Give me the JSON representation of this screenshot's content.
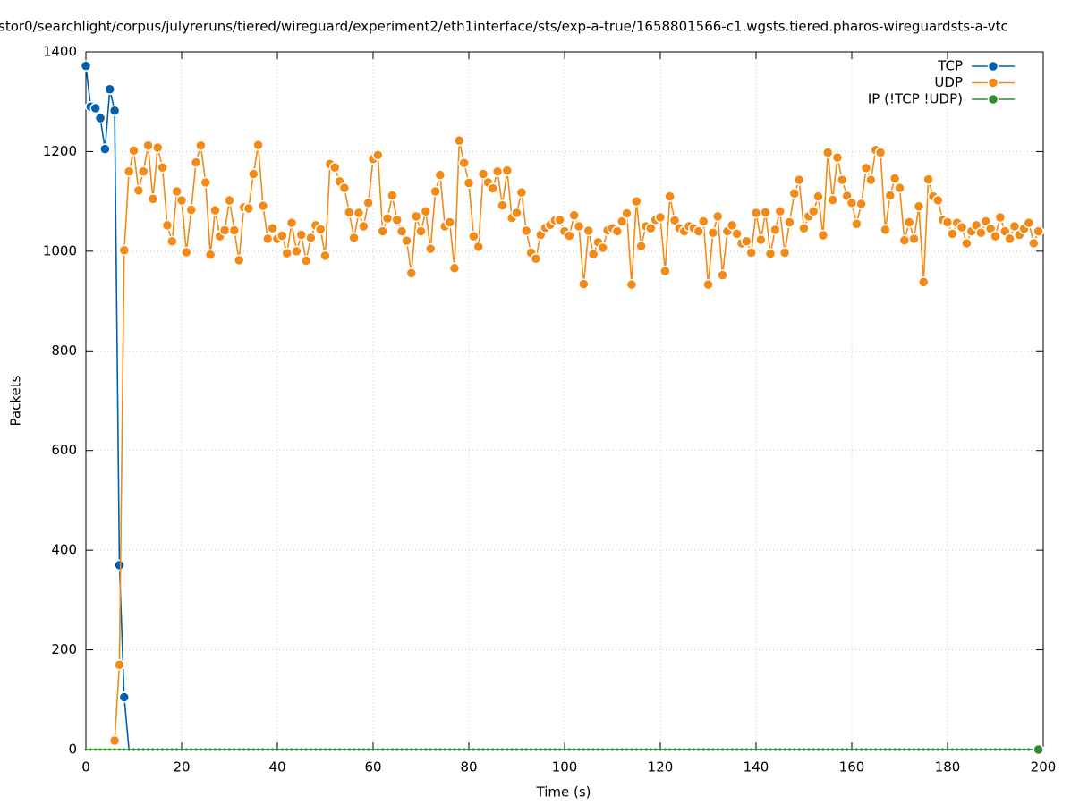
{
  "chart_data": {
    "type": "line",
    "title": "stor0/searchlight/corpus/julyreruns/tiered/wireguard/experiment2/eth1interface/sts/exp-a-true/1658801566-c1.wgsts.tiered.pharos-wireguardsts-a-vtc",
    "x_label": "Time (s)",
    "y_label": "Packets",
    "xlim": [
      0,
      200
    ],
    "xticks": [
      0,
      20,
      40,
      60,
      80,
      100,
      120,
      140,
      160,
      180,
      200
    ],
    "ylim": [
      0,
      1400
    ],
    "yticks": [
      0,
      200,
      400,
      600,
      800,
      1000,
      1200,
      1400
    ],
    "grid": true,
    "legend": "top-right",
    "x": [
      0,
      1,
      2,
      3,
      4,
      5,
      6,
      7,
      8,
      9,
      10,
      11,
      12,
      13,
      14,
      15,
      16,
      17,
      18,
      19,
      20,
      21,
      22,
      23,
      24,
      25,
      26,
      27,
      28,
      29,
      30,
      31,
      32,
      33,
      34,
      35,
      36,
      37,
      38,
      39,
      40,
      41,
      42,
      43,
      44,
      45,
      46,
      47,
      48,
      49,
      50,
      51,
      52,
      53,
      54,
      55,
      56,
      57,
      58,
      59,
      60,
      61,
      62,
      63,
      64,
      65,
      66,
      67,
      68,
      69,
      70,
      71,
      72,
      73,
      74,
      75,
      76,
      77,
      78,
      79,
      80,
      81,
      82,
      83,
      84,
      85,
      86,
      87,
      88,
      89,
      90,
      91,
      92,
      93,
      94,
      95,
      96,
      97,
      98,
      99,
      100,
      101,
      102,
      103,
      104,
      105,
      106,
      107,
      108,
      109,
      110,
      111,
      112,
      113,
      114,
      115,
      116,
      117,
      118,
      119,
      120,
      121,
      122,
      123,
      124,
      125,
      126,
      127,
      128,
      129,
      130,
      131,
      132,
      133,
      134,
      135,
      136,
      137,
      138,
      139,
      140,
      141,
      142,
      143,
      144,
      145,
      146,
      147,
      148,
      149,
      150,
      151,
      152,
      153,
      154,
      155,
      156,
      157,
      158,
      159,
      160,
      161,
      162,
      163,
      164,
      165,
      166,
      167,
      168,
      169,
      170,
      171,
      172,
      173,
      174,
      175,
      176,
      177,
      178,
      179,
      180,
      181,
      182,
      183,
      184,
      185,
      186,
      187,
      188,
      189,
      190,
      191,
      192,
      193,
      194,
      195,
      196,
      197,
      198,
      199
    ],
    "series": [
      {
        "name": "TCP",
        "color": "#0060ad",
        "values": [
          1372,
          1290,
          1287,
          1267,
          1205,
          1325,
          1282,
          370,
          105,
          0,
          0,
          0,
          0,
          0,
          0,
          0,
          0,
          0,
          0,
          0,
          0,
          0,
          0,
          0,
          0,
          0,
          0,
          0,
          0,
          0,
          0,
          0,
          0,
          0,
          0,
          0,
          0,
          0,
          0,
          0,
          0,
          0,
          0,
          0,
          0,
          0,
          0,
          0,
          0,
          0,
          0,
          0,
          0,
          0,
          0,
          0,
          0,
          0,
          0,
          0,
          0,
          0,
          0,
          0,
          0,
          0,
          0,
          0,
          0,
          0,
          0,
          0,
          0,
          0,
          0,
          0,
          0,
          0,
          0,
          0,
          0,
          0,
          0,
          0,
          0,
          0,
          0,
          0,
          0,
          0,
          0,
          0,
          0,
          0,
          0,
          0,
          0,
          0,
          0,
          0,
          0,
          0,
          0,
          0,
          0,
          0,
          0,
          0,
          0,
          0,
          0,
          0,
          0,
          0,
          0,
          0,
          0,
          0,
          0,
          0,
          0,
          0,
          0,
          0,
          0,
          0,
          0,
          0,
          0,
          0,
          0,
          0,
          0,
          0,
          0,
          0,
          0,
          0,
          0,
          0,
          0,
          0,
          0,
          0,
          0,
          0,
          0,
          0,
          0,
          0,
          0,
          0,
          0,
          0,
          0,
          0,
          0,
          0,
          0,
          0,
          0,
          0,
          0,
          0,
          0,
          0,
          0,
          0,
          0,
          0,
          0,
          0,
          0,
          0,
          0,
          0,
          0,
          0,
          0,
          0,
          0,
          0,
          0,
          0,
          0,
          0,
          0,
          0,
          0,
          0,
          0,
          0,
          0,
          0,
          0,
          0,
          0,
          0,
          0,
          0
        ]
      },
      {
        "name": "UDP",
        "color": "#f28a17",
        "values": [
          null,
          null,
          null,
          null,
          null,
          null,
          18,
          170,
          1002,
          1160,
          1202,
          1122,
          1160,
          1212,
          1105,
          1208,
          1168,
          1052,
          1020,
          1120,
          1102,
          998,
          1083,
          1178,
          1212,
          1138,
          993,
          1082,
          1030,
          1042,
          1102,
          1042,
          982,
          1088,
          1086,
          1155,
          1213,
          1091,
          1025,
          1046,
          1025,
          1031,
          996,
          1057,
          1000,
          1033,
          981,
          1027,
          1052,
          1044,
          991,
          1175,
          1168,
          1140,
          1127,
          1078,
          1027,
          1077,
          1050,
          1097,
          1185,
          1193,
          1040,
          1066,
          1112,
          1063,
          1040,
          1021,
          956,
          1070,
          1040,
          1080,
          1005,
          1120,
          1153,
          1050,
          1058,
          966,
          1222,
          1177,
          1137,
          1030,
          1009,
          1155,
          1138,
          1126,
          1160,
          1092,
          1162,
          1067,
          1077,
          1118,
          1041,
          997,
          985,
          1033,
          1047,
          1053,
          1062,
          1063,
          1040,
          1031,
          1072,
          1050,
          934,
          1041,
          994,
          1018,
          1007,
          1042,
          1046,
          1040,
          1060,
          1076,
          933,
          1100,
          1010,
          1050,
          1046,
          1063,
          1068,
          960,
          1110,
          1062,
          1046,
          1040,
          1050,
          1046,
          1040,
          1060,
          933,
          1037,
          1070,
          952,
          1040,
          1052,
          1035,
          1016,
          1020,
          997,
          1077,
          1023,
          1078,
          995,
          1043,
          1080,
          997,
          1058,
          1116,
          1143,
          1046,
          1070,
          1080,
          1110,
          1032,
          1198,
          1103,
          1188,
          1143,
          1111,
          1097,
          1055,
          1095,
          1167,
          1143,
          1203,
          1198,
          1043,
          1112,
          1146,
          1127,
          1022,
          1058,
          1025,
          1090,
          938,
          1144,
          1110,
          1102,
          1063,
          1058,
          1035,
          1057,
          1048,
          1016,
          1040,
          1052,
          1037,
          1060,
          1045,
          1030,
          1068,
          1040,
          1025,
          1050,
          1033,
          1045,
          1057,
          1016,
          1040
        ]
      },
      {
        "name": "IP (!TCP  !UDP)",
        "color": "#2e8b2e",
        "values": [
          0,
          0,
          0,
          0,
          0,
          0,
          0,
          0,
          0,
          0,
          0,
          0,
          0,
          0,
          0,
          0,
          0,
          0,
          0,
          0,
          0,
          0,
          0,
          0,
          0,
          0,
          0,
          0,
          0,
          0,
          0,
          0,
          0,
          0,
          0,
          0,
          0,
          0,
          0,
          0,
          0,
          0,
          0,
          0,
          0,
          0,
          0,
          0,
          0,
          0,
          0,
          0,
          0,
          0,
          0,
          0,
          0,
          0,
          0,
          0,
          0,
          0,
          0,
          0,
          0,
          0,
          0,
          0,
          0,
          0,
          0,
          0,
          0,
          0,
          0,
          0,
          0,
          0,
          0,
          0,
          0,
          0,
          0,
          0,
          0,
          0,
          0,
          0,
          0,
          0,
          0,
          0,
          0,
          0,
          0,
          0,
          0,
          0,
          0,
          0,
          0,
          0,
          0,
          0,
          0,
          0,
          0,
          0,
          0,
          0,
          0,
          0,
          0,
          0,
          0,
          0,
          0,
          0,
          0,
          0,
          0,
          0,
          0,
          0,
          0,
          0,
          0,
          0,
          0,
          0,
          0,
          0,
          0,
          0,
          0,
          0,
          0,
          0,
          0,
          0,
          0,
          0,
          0,
          0,
          0,
          0,
          0,
          0,
          0,
          0,
          0,
          0,
          0,
          0,
          0,
          0,
          0,
          0,
          0,
          0,
          0,
          0,
          0,
          0,
          0,
          0,
          0,
          0,
          0,
          0,
          0,
          0,
          0,
          0,
          0,
          0,
          0,
          0,
          0,
          0,
          0,
          0,
          0,
          0,
          0,
          0,
          0,
          0,
          0,
          0,
          0,
          0,
          0,
          0,
          0,
          0,
          0,
          0,
          0,
          0
        ]
      }
    ]
  }
}
